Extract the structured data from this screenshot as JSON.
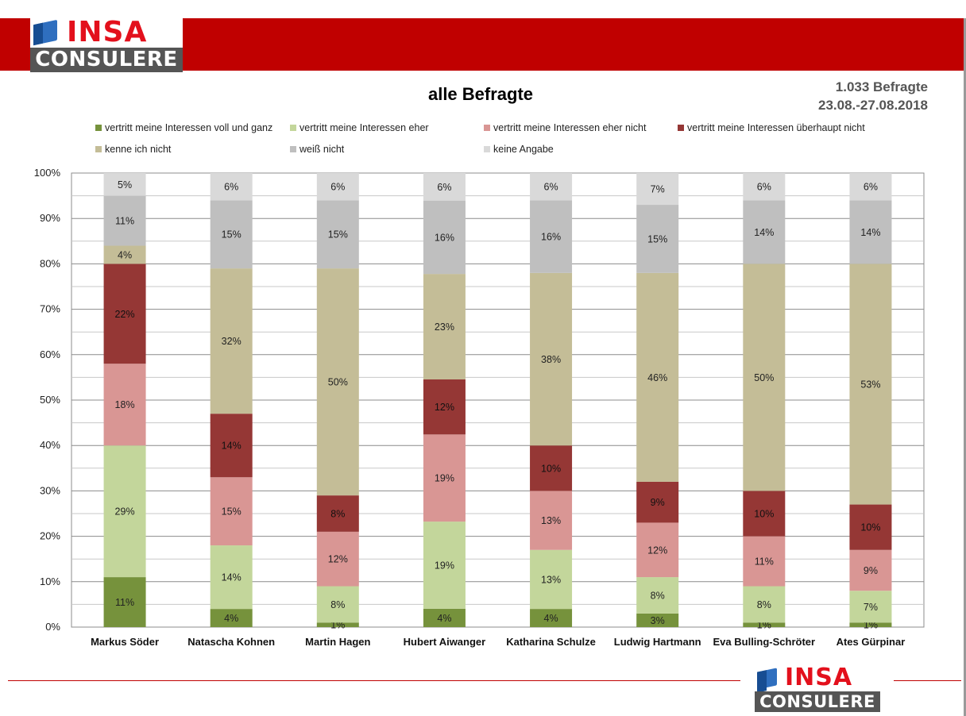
{
  "header": {
    "logo_top": "INSA",
    "logo_bottom": "CONSULERE"
  },
  "title": "alle Befragte",
  "meta": {
    "sample": "1.033 Befragte",
    "period": "23.08.-27.08.2018"
  },
  "colors": {
    "brand_red": "#c00000",
    "voll_und_ganz": "#76923c",
    "eher": "#c3d69b",
    "eher_nicht": "#d99694",
    "ueberhaupt_nicht": "#953735",
    "kenne_nicht": "#c4bd97",
    "weiss_nicht": "#bfbfbf",
    "keine_angabe": "#d9d9d9"
  },
  "chart_data": {
    "type": "bar",
    "stacked": true,
    "categories": [
      "Markus Söder",
      "Natascha Kohnen",
      "Martin Hagen",
      "Hubert Aiwanger",
      "Katharina Schulze",
      "Ludwig Hartmann",
      "Eva Bulling-Schröter",
      "Ates Gürpinar"
    ],
    "series": [
      {
        "name": "vertritt meine Interessen voll und ganz",
        "color": "#76923c",
        "values": [
          11,
          4,
          1,
          4,
          4,
          3,
          1,
          1
        ]
      },
      {
        "name": "vertritt meine Interessen eher",
        "color": "#c3d69b",
        "values": [
          29,
          14,
          8,
          19,
          13,
          8,
          8,
          7
        ]
      },
      {
        "name": "vertritt meine Interessen eher nicht",
        "color": "#d99694",
        "values": [
          18,
          15,
          12,
          19,
          13,
          12,
          11,
          9
        ]
      },
      {
        "name": "vertritt meine Interessen überhaupt nicht",
        "color": "#953735",
        "values": [
          22,
          14,
          8,
          12,
          10,
          9,
          10,
          10
        ]
      },
      {
        "name": "kenne ich nicht",
        "color": "#c4bd97",
        "values": [
          4,
          32,
          50,
          23,
          38,
          46,
          50,
          53
        ]
      },
      {
        "name": "weiß nicht",
        "color": "#bfbfbf",
        "values": [
          11,
          15,
          15,
          16,
          16,
          15,
          14,
          14
        ]
      },
      {
        "name": "keine Angabe",
        "color": "#d9d9d9",
        "values": [
          5,
          6,
          6,
          6,
          6,
          7,
          6,
          6
        ]
      }
    ],
    "yticks": [
      "0%",
      "10%",
      "20%",
      "30%",
      "40%",
      "50%",
      "60%",
      "70%",
      "80%",
      "90%",
      "100%"
    ],
    "ylim": [
      0,
      100
    ],
    "grid": true,
    "legend_position": "top"
  }
}
